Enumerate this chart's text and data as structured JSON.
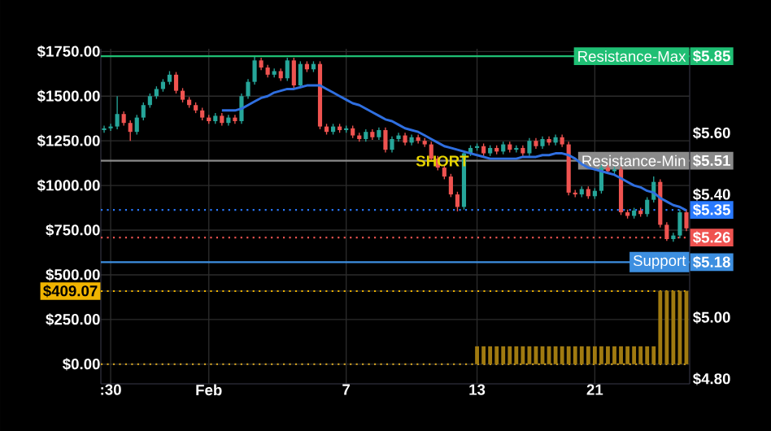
{
  "chart_data": {
    "type": "candlestick",
    "categories": [
      null,
      ":30",
      null,
      null,
      null,
      null,
      null,
      null,
      null,
      null,
      null,
      null,
      null,
      null,
      null,
      null,
      "Feb",
      null,
      null,
      null,
      null,
      null,
      null,
      null,
      null,
      null,
      null,
      null,
      null,
      null,
      null,
      null,
      null,
      null,
      null,
      null,
      null,
      "7",
      null,
      null,
      null,
      null,
      null,
      null,
      null,
      null,
      null,
      null,
      null,
      null,
      null,
      null,
      null,
      null,
      null,
      null,
      null,
      "13",
      null,
      null,
      null,
      null,
      null,
      null,
      null,
      null,
      null,
      null,
      null,
      null,
      null,
      null,
      null,
      null,
      null,
      "21",
      null,
      null,
      null,
      null,
      null,
      null,
      null,
      null,
      null,
      null,
      null,
      null,
      null,
      null
    ],
    "series": [
      {
        "type": "candlestick",
        "ohlc": [
          [
            1310,
            1335,
            1295,
            1320
          ],
          [
            1320,
            1345,
            1305,
            1330
          ],
          [
            1330,
            1500,
            1315,
            1400
          ],
          [
            1400,
            1415,
            1335,
            1350
          ],
          [
            1350,
            1365,
            1250,
            1300
          ],
          [
            1300,
            1395,
            1285,
            1380
          ],
          [
            1380,
            1465,
            1365,
            1450
          ],
          [
            1450,
            1515,
            1435,
            1500
          ],
          [
            1500,
            1555,
            1485,
            1540
          ],
          [
            1540,
            1595,
            1525,
            1580
          ],
          [
            1580,
            1640,
            1565,
            1620
          ],
          [
            1620,
            1635,
            1515,
            1530
          ],
          [
            1530,
            1545,
            1465,
            1480
          ],
          [
            1480,
            1495,
            1435,
            1450
          ],
          [
            1450,
            1465,
            1405,
            1420
          ],
          [
            1420,
            1435,
            1365,
            1380
          ],
          [
            1380,
            1395,
            1345,
            1360
          ],
          [
            1360,
            1405,
            1345,
            1390
          ],
          [
            1390,
            1405,
            1335,
            1350
          ],
          [
            1350,
            1395,
            1335,
            1380
          ],
          [
            1380,
            1395,
            1345,
            1360
          ],
          [
            1360,
            1515,
            1345,
            1500
          ],
          [
            1500,
            1595,
            1485,
            1580
          ],
          [
            1580,
            1720,
            1565,
            1700
          ],
          [
            1700,
            1715,
            1645,
            1660
          ],
          [
            1660,
            1675,
            1605,
            1620
          ],
          [
            1620,
            1655,
            1605,
            1640
          ],
          [
            1640,
            1655,
            1585,
            1600
          ],
          [
            1600,
            1715,
            1585,
            1700
          ],
          [
            1700,
            1715,
            1545,
            1560
          ],
          [
            1560,
            1695,
            1545,
            1680
          ],
          [
            1680,
            1695,
            1635,
            1650
          ],
          [
            1650,
            1695,
            1635,
            1680
          ],
          [
            1680,
            1695,
            1315,
            1330
          ],
          [
            1330,
            1345,
            1285,
            1300
          ],
          [
            1300,
            1345,
            1285,
            1330
          ],
          [
            1330,
            1345,
            1295,
            1310
          ],
          [
            1310,
            1335,
            1295,
            1320
          ],
          [
            1320,
            1335,
            1265,
            1280
          ],
          [
            1280,
            1295,
            1245,
            1260
          ],
          [
            1260,
            1315,
            1245,
            1300
          ],
          [
            1300,
            1315,
            1255,
            1270
          ],
          [
            1270,
            1325,
            1255,
            1310
          ],
          [
            1310,
            1325,
            1185,
            1200
          ],
          [
            1200,
            1275,
            1185,
            1260
          ],
          [
            1260,
            1295,
            1245,
            1280
          ],
          [
            1280,
            1295,
            1225,
            1240
          ],
          [
            1240,
            1285,
            1225,
            1270
          ],
          [
            1270,
            1285,
            1235,
            1250
          ],
          [
            1250,
            1265,
            1215,
            1230
          ],
          [
            1230,
            1245,
            1135,
            1150
          ],
          [
            1150,
            1165,
            1085,
            1100
          ],
          [
            1100,
            1115,
            1035,
            1050
          ],
          [
            1050,
            1065,
            935,
            950
          ],
          [
            950,
            965,
            855,
            880
          ],
          [
            880,
            1195,
            865,
            1180
          ],
          [
            1180,
            1225,
            1165,
            1210
          ],
          [
            1210,
            1235,
            1195,
            1220
          ],
          [
            1220,
            1235,
            1165,
            1180
          ],
          [
            1180,
            1225,
            1165,
            1210
          ],
          [
            1210,
            1225,
            1175,
            1190
          ],
          [
            1190,
            1245,
            1175,
            1230
          ],
          [
            1230,
            1245,
            1185,
            1200
          ],
          [
            1200,
            1225,
            1185,
            1210
          ],
          [
            1210,
            1225,
            1165,
            1180
          ],
          [
            1180,
            1265,
            1165,
            1250
          ],
          [
            1250,
            1265,
            1205,
            1220
          ],
          [
            1220,
            1275,
            1205,
            1260
          ],
          [
            1260,
            1275,
            1225,
            1240
          ],
          [
            1240,
            1285,
            1225,
            1270
          ],
          [
            1270,
            1285,
            1215,
            1230
          ],
          [
            1230,
            1245,
            945,
            960
          ],
          [
            960,
            975,
            935,
            950
          ],
          [
            950,
            995,
            935,
            980
          ],
          [
            980,
            995,
            925,
            940
          ],
          [
            940,
            985,
            925,
            970
          ],
          [
            970,
            1115,
            955,
            1100
          ],
          [
            1100,
            1115,
            1065,
            1080
          ],
          [
            1080,
            1105,
            1065,
            1090
          ],
          [
            1090,
            1105,
            835,
            850
          ],
          [
            850,
            865,
            815,
            830
          ],
          [
            830,
            875,
            815,
            860
          ],
          [
            860,
            875,
            825,
            840
          ],
          [
            840,
            935,
            825,
            920
          ],
          [
            920,
            1050,
            905,
            1020
          ],
          [
            1020,
            1035,
            765,
            780
          ],
          [
            780,
            795,
            690,
            700
          ],
          [
            700,
            735,
            685,
            720
          ],
          [
            720,
            865,
            705,
            850
          ],
          [
            850,
            865,
            745,
            760
          ]
        ]
      },
      {
        "type": "line",
        "color": "#2f6fe0",
        "values": [
          null,
          null,
          null,
          null,
          null,
          null,
          null,
          null,
          null,
          null,
          null,
          null,
          null,
          null,
          null,
          null,
          null,
          null,
          1420,
          1420,
          1420,
          1430,
          1450,
          1470,
          1490,
          1500,
          1520,
          1530,
          1540,
          1540,
          1550,
          1560,
          1560,
          1560,
          1540,
          1520,
          1500,
          1480,
          1460,
          1450,
          1430,
          1410,
          1390,
          1370,
          1360,
          1340,
          1320,
          1310,
          1300,
          1280,
          1260,
          1240,
          1220,
          1210,
          1200,
          1190,
          1180,
          1170,
          1160,
          1150,
          1150,
          1150,
          1150,
          1150,
          1160,
          1160,
          1160,
          1170,
          1170,
          1180,
          1180,
          1170,
          1150,
          1120,
          1100,
          1090,
          1080,
          1070,
          1060,
          1040,
          1020,
          1000,
          990,
          970,
          960,
          930,
          910,
          890,
          880,
          860
        ]
      },
      {
        "type": "bar",
        "color": "#a07a10",
        "values": [
          null,
          null,
          null,
          null,
          null,
          null,
          null,
          null,
          null,
          null,
          null,
          null,
          null,
          null,
          null,
          null,
          null,
          null,
          null,
          null,
          null,
          null,
          null,
          null,
          null,
          null,
          null,
          null,
          null,
          null,
          null,
          null,
          null,
          null,
          null,
          null,
          null,
          null,
          null,
          null,
          null,
          null,
          null,
          null,
          null,
          null,
          null,
          null,
          null,
          null,
          null,
          null,
          null,
          null,
          null,
          null,
          null,
          100,
          100,
          100,
          100,
          100,
          100,
          100,
          100,
          100,
          100,
          100,
          100,
          100,
          100,
          100,
          100,
          100,
          100,
          100,
          100,
          100,
          100,
          100,
          100,
          100,
          100,
          100,
          100,
          410,
          410,
          410,
          410,
          410
        ]
      }
    ],
    "ylim": [
      -110,
      1765
    ],
    "yticks": [
      {
        "value": 0,
        "label": "$0.00"
      },
      {
        "value": 250,
        "label": "$250.00"
      },
      {
        "value": 409.07,
        "label": "$409.07"
      },
      {
        "value": 500,
        "label": "$500.00"
      },
      {
        "value": 750,
        "label": "$750.00"
      },
      {
        "value": 1000,
        "label": "$1000.00"
      },
      {
        "value": 1250,
        "label": "$1250.00"
      },
      {
        "value": 1500,
        "label": "$1500.00"
      },
      {
        "value": 1750,
        "label": "$1750.00"
      }
    ],
    "y2lim": [
      4.784,
      5.874
    ],
    "y2ticks": [
      {
        "value": 4.8,
        "label": "$4.80"
      },
      {
        "value": 5.0,
        "label": "$5.00"
      },
      {
        "value": 5.18,
        "label": "$5.18"
      },
      {
        "value": 5.26,
        "label": "$5.26"
      },
      {
        "value": 5.35,
        "label": "$5.35"
      },
      {
        "value": 5.4,
        "label": "$5.40"
      },
      {
        "value": 5.51,
        "label": "$5.51"
      },
      {
        "value": 5.6,
        "label": "$5.60"
      },
      {
        "value": 5.85,
        "label": "$5.85"
      }
    ],
    "ref_lines": [
      {
        "axis": "y2",
        "value": 5.85,
        "label": "Resistance-Max",
        "color": "#1fbf74",
        "line_style": "solid"
      },
      {
        "axis": "y2",
        "value": 5.51,
        "label": "Resistance-Min",
        "color": "#8a8a8a",
        "line_style": "solid"
      },
      {
        "axis": "y2",
        "value": 5.35,
        "color": "#2979ff",
        "line_style": "dotted"
      },
      {
        "axis": "y2",
        "value": 5.26,
        "color": "#ef5350",
        "line_style": "dotted"
      },
      {
        "axis": "y2",
        "value": 5.18,
        "label": "Support",
        "color": "#3d8fe0",
        "line_style": "solid"
      },
      {
        "axis": "y",
        "value": 409.07,
        "color": "#f0b400",
        "line_style": "dotted"
      },
      {
        "axis": "y",
        "value": 0,
        "color": "#c89a20",
        "line_style": "dotted"
      }
    ],
    "annotations": [
      "SHORT"
    ],
    "grid": true
  }
}
